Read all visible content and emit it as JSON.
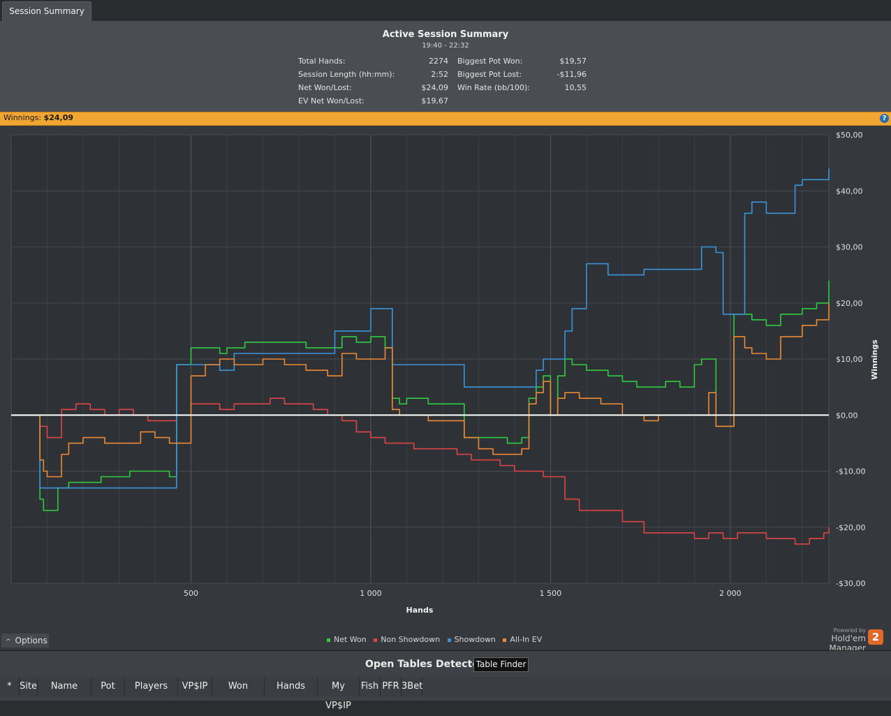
{
  "tab": {
    "label": "Session Summary"
  },
  "summary": {
    "title": "Active Session Summary",
    "time": "19:40 - 22:32",
    "left": [
      {
        "label": "Total Hands:",
        "value": "2274"
      },
      {
        "label": "Session Length (hh:mm):",
        "value": "2:52"
      },
      {
        "label": "Net Won/Lost:",
        "value": "$24,09"
      },
      {
        "label": "EV Net Won/Lost:",
        "value": "$19,67"
      }
    ],
    "right": [
      {
        "label": "Biggest Pot Won:",
        "value": "$19,57"
      },
      {
        "label": "Biggest Pot Lost:",
        "value": "-$11,96"
      },
      {
        "label": "Win Rate (bb/100):",
        "value": "10,55"
      }
    ]
  },
  "winbar": {
    "label": "Winnings:",
    "value": "$24,09"
  },
  "options": {
    "label": "Options"
  },
  "powered": {
    "by": "Powered by",
    "name": "Hold'em Manager",
    "badge": "2"
  },
  "bottom": {
    "title": "Open Tables Detected",
    "finder": "Table Finder",
    "columns": [
      "*",
      "Site",
      "Name",
      "Pot",
      "Players",
      "VP$IP",
      "Won",
      "Hands",
      "My VP$IP",
      "Fish",
      "PFR",
      "3Bet"
    ]
  },
  "chart_data": {
    "type": "line",
    "xlabel": "Hands",
    "ylabel": "Winnings",
    "xlim": [
      0,
      2274
    ],
    "ylim": [
      -30,
      50
    ],
    "x_ticks": [
      500,
      1000,
      1500,
      2000
    ],
    "x_tick_labels": [
      "500",
      "1 000",
      "1 500",
      "2 000"
    ],
    "y_ticks": [
      50,
      40,
      30,
      20,
      10,
      0,
      -10,
      -20,
      -30
    ],
    "y_tick_labels": [
      "$50,00",
      "$40,00",
      "$30,00",
      "$20,00",
      "$10,00",
      "$0,00",
      "-$10,00",
      "-$20,00",
      "-$30,00"
    ],
    "grid": true,
    "legend": "bottom",
    "series": [
      {
        "name": "Net Won",
        "color": "#2ecc40",
        "x": [
          0,
          40,
          80,
          90,
          100,
          130,
          160,
          200,
          250,
          320,
          330,
          360,
          400,
          440,
          450,
          460,
          500,
          540,
          580,
          600,
          650,
          700,
          760,
          820,
          860,
          880,
          920,
          960,
          1000,
          1020,
          1040,
          1060,
          1080,
          1100,
          1160,
          1200,
          1240,
          1260,
          1300,
          1340,
          1380,
          1400,
          1420,
          1440,
          1460,
          1480,
          1500,
          1520,
          1540,
          1560,
          1600,
          1660,
          1700,
          1740,
          1780,
          1820,
          1860,
          1900,
          1920,
          1940,
          1960,
          2000,
          2010,
          2040,
          2060,
          2100,
          2140,
          2160,
          2200,
          2240,
          2274
        ],
        "y": [
          0,
          0,
          -15,
          -17,
          -17,
          -13,
          -12,
          -12,
          -11,
          -11,
          -10,
          -10,
          -10,
          -11,
          -11,
          9,
          12,
          12,
          11,
          12,
          13,
          13,
          13,
          12,
          12,
          12,
          14,
          13,
          14,
          14,
          12,
          3,
          2,
          3,
          2,
          2,
          2,
          -4,
          -4,
          -4,
          -5,
          -5,
          -4,
          3,
          5,
          7,
          0,
          7,
          10,
          9,
          8,
          7,
          6,
          5,
          5,
          6,
          5,
          9,
          10,
          10,
          -2,
          -2,
          18,
          18,
          17,
          16,
          18,
          18,
          19,
          20,
          24
        ]
      },
      {
        "name": "Non Showdown",
        "color": "#e04444",
        "x": [
          0,
          40,
          80,
          100,
          140,
          180,
          220,
          260,
          300,
          340,
          380,
          420,
          460,
          500,
          540,
          580,
          620,
          680,
          720,
          760,
          800,
          840,
          880,
          920,
          960,
          1000,
          1040,
          1080,
          1120,
          1160,
          1200,
          1240,
          1280,
          1320,
          1360,
          1400,
          1440,
          1480,
          1500,
          1540,
          1580,
          1640,
          1700,
          1760,
          1800,
          1860,
          1900,
          1940,
          1980,
          2020,
          2060,
          2100,
          2140,
          2180,
          2220,
          2260,
          2274
        ],
        "y": [
          0,
          0,
          -2,
          -4,
          1,
          2,
          1,
          0,
          1,
          0,
          -1,
          -1,
          0,
          2,
          2,
          1,
          2,
          2,
          3,
          2,
          2,
          1,
          0,
          -1,
          -3,
          -4,
          -5,
          -5,
          -6,
          -6,
          -6,
          -7,
          -8,
          -8,
          -9,
          -10,
          -10,
          -11,
          -11,
          -15,
          -17,
          -17,
          -19,
          -21,
          -21,
          -21,
          -22,
          -21,
          -22,
          -21,
          -21,
          -22,
          -22,
          -23,
          -22,
          -21,
          -20
        ]
      },
      {
        "name": "Showdown",
        "color": "#3a96dc",
        "x": [
          0,
          40,
          80,
          120,
          160,
          200,
          250,
          320,
          360,
          400,
          440,
          460,
          500,
          540,
          580,
          620,
          700,
          800,
          880,
          900,
          960,
          1000,
          1040,
          1060,
          1100,
          1160,
          1200,
          1240,
          1260,
          1300,
          1340,
          1380,
          1400,
          1440,
          1460,
          1480,
          1500,
          1540,
          1560,
          1600,
          1660,
          1700,
          1760,
          1800,
          1840,
          1880,
          1900,
          1920,
          1940,
          1960,
          1980,
          2000,
          2010,
          2040,
          2060,
          2100,
          2140,
          2180,
          2200,
          2240,
          2274
        ],
        "y": [
          0,
          0,
          -13,
          -13,
          -13,
          -13,
          -13,
          -13,
          -13,
          -13,
          -13,
          9,
          9,
          9,
          8,
          11,
          11,
          11,
          11,
          15,
          15,
          19,
          19,
          9,
          9,
          9,
          9,
          9,
          5,
          5,
          5,
          5,
          5,
          5,
          8,
          10,
          10,
          15,
          19,
          27,
          25,
          25,
          26,
          26,
          26,
          26,
          26,
          30,
          30,
          29,
          18,
          18,
          18,
          36,
          38,
          36,
          36,
          41,
          42,
          42,
          44
        ]
      },
      {
        "name": "All-In EV",
        "color": "#ee8a33",
        "x": [
          0,
          40,
          80,
          90,
          100,
          140,
          160,
          200,
          260,
          320,
          360,
          400,
          440,
          460,
          500,
          540,
          580,
          620,
          700,
          760,
          820,
          860,
          880,
          920,
          960,
          1000,
          1020,
          1040,
          1060,
          1080,
          1100,
          1160,
          1200,
          1240,
          1260,
          1300,
          1340,
          1380,
          1400,
          1420,
          1440,
          1460,
          1480,
          1500,
          1520,
          1540,
          1580,
          1640,
          1700,
          1760,
          1800,
          1860,
          1900,
          1940,
          1960,
          2000,
          2010,
          2040,
          2060,
          2100,
          2140,
          2160,
          2200,
          2240,
          2274
        ],
        "y": [
          0,
          0,
          -8,
          -10,
          -11,
          -7,
          -5,
          -4,
          -5,
          -5,
          -3,
          -4,
          -5,
          -5,
          7,
          9,
          10,
          9,
          10,
          9,
          8,
          8,
          7,
          11,
          10,
          10,
          10,
          12,
          1,
          0,
          0,
          -1,
          -1,
          -1,
          -4,
          -6,
          -7,
          -7,
          -7,
          -6,
          2,
          4,
          6,
          0,
          3,
          4,
          3,
          2,
          0,
          -1,
          0,
          0,
          0,
          4,
          -2,
          -2,
          14,
          12,
          11,
          10,
          14,
          14,
          16,
          17,
          20
        ]
      }
    ]
  }
}
